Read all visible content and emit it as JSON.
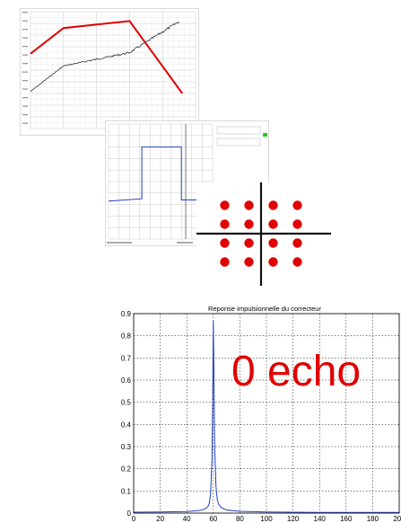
{
  "colors": {
    "accent_red": "#e00000",
    "trace_blue": "#1f3fbf",
    "noise_black": "#333333",
    "grid": "#bdbdbd"
  },
  "overlay_text": "0 echo",
  "chart_data": [
    {
      "type": "line",
      "description_of": "frequency response with asymptote segments",
      "series": [
        {
          "values_from": "asymptote",
          "x": [
            0,
            0.2,
            0.6,
            0.92
          ],
          "y": [
            0.64,
            0.86,
            0.92,
            0.3
          ]
        }
      ],
      "ylim": [
        0,
        1
      ],
      "grid": true
    },
    {
      "type": "line",
      "description_of": "step response trace",
      "series": [
        {
          "x": [
            0,
            0.32,
            0.32,
            0.7,
            0.7,
            1.0
          ],
          "y": [
            0.33,
            0.35,
            0.8,
            0.8,
            0.34,
            0.34
          ]
        }
      ],
      "grid": true
    },
    {
      "type": "scatter",
      "description_of": "4x4 constellation",
      "x": [
        -3,
        -1,
        1,
        3
      ],
      "y": [
        -3,
        -1,
        1,
        3
      ]
    },
    {
      "type": "line",
      "title": "Reponse impulsionnelle du correcteur",
      "xlim": [
        0,
        200
      ],
      "ylim": [
        0,
        0.9
      ],
      "xticks": [
        "0",
        "20",
        "40",
        "60",
        "80",
        "100",
        "120",
        "140",
        "160",
        "180",
        "200"
      ],
      "yticks": [
        "0",
        "0.1",
        "0.2",
        "0.3",
        "0.4",
        "0.5",
        "0.6",
        "0.7",
        "0.8",
        "0.9"
      ],
      "grid": true,
      "series": [
        {
          "x": [
            0,
            20,
            40,
            50,
            54,
            56,
            57,
            58,
            59,
            59.5,
            60,
            60.5,
            61,
            62,
            63,
            64,
            66,
            70,
            80,
            100,
            120,
            140,
            160,
            180,
            200
          ],
          "y": [
            0.004,
            0.005,
            0.007,
            0.012,
            0.02,
            0.03,
            0.045,
            0.09,
            0.25,
            0.5,
            0.87,
            0.6,
            0.3,
            0.12,
            0.06,
            0.04,
            0.025,
            0.014,
            0.008,
            0.005,
            0.004,
            0.003,
            0.003,
            0.003,
            0.003
          ]
        }
      ]
    }
  ]
}
